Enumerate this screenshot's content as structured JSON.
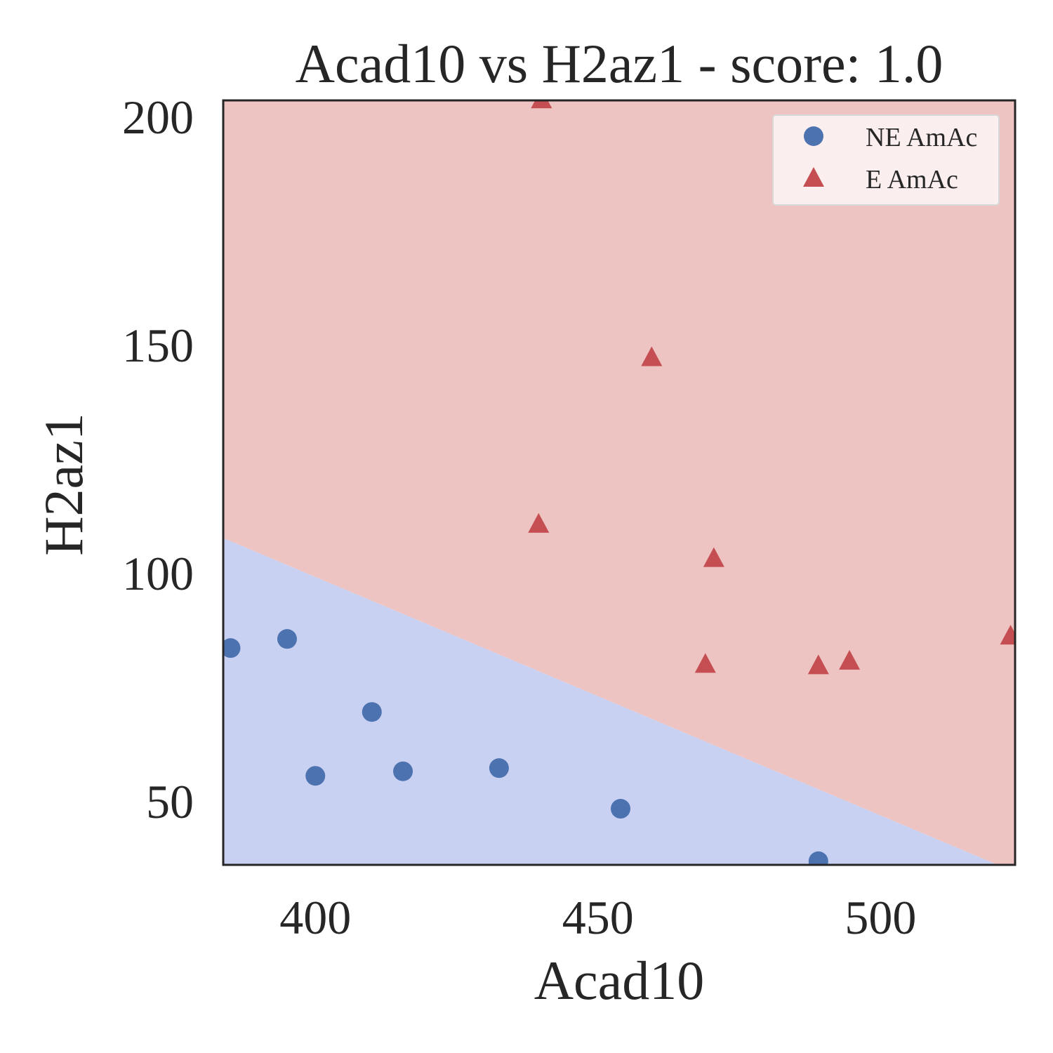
{
  "chart_data": {
    "type": "scatter",
    "title": "Acad10 vs H2az1 - score: 1.0",
    "xlabel": "Acad10",
    "ylabel": "H2az1",
    "xlim": [
      383.7,
      523.8
    ],
    "ylim": [
      36.0,
      203.5
    ],
    "xticks": [
      400,
      450,
      500
    ],
    "yticks": [
      50,
      100,
      150,
      200
    ],
    "grid": false,
    "legend_position": "top-right",
    "decision_boundary": {
      "points": [
        [
          383.7,
          107.6
        ],
        [
          520.7,
          36.0
        ]
      ],
      "above_color": "#eec4c3",
      "below_color": "#c9d1f2"
    },
    "series": [
      {
        "name": "NE AmAc",
        "marker": "circle",
        "color": "#4c72b0",
        "x": [
          385.0,
          395.0,
          410.0,
          400.0,
          415.5,
          432.5,
          454.0,
          489.0
        ],
        "y": [
          83.5,
          85.5,
          69.5,
          55.5,
          56.5,
          57.2,
          48.3,
          36.8
        ]
      },
      {
        "name": "E AmAc",
        "marker": "triangle",
        "color": "#c44e52",
        "x": [
          440.0,
          459.5,
          439.5,
          470.5,
          469.0,
          489.0,
          494.5,
          523.0
        ],
        "y": [
          203.5,
          147.0,
          110.5,
          103.0,
          79.8,
          79.5,
          80.5,
          86.0
        ]
      }
    ]
  }
}
